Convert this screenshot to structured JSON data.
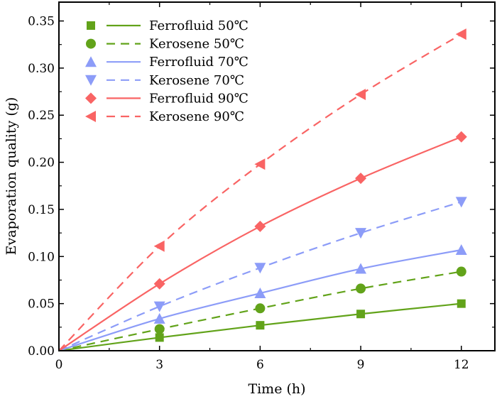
{
  "chart_data": {
    "type": "line",
    "title": "",
    "xlabel": "Time (h)",
    "ylabel": "Evaporation quality (g)",
    "xlim": [
      0,
      13
    ],
    "ylim": [
      0,
      0.37
    ],
    "xticks": [
      0,
      3,
      6,
      9,
      12
    ],
    "xtick_labels": [
      "0",
      "3",
      "6",
      "9",
      "12"
    ],
    "xminor_step": 1.5,
    "yticks": [
      0,
      0.05,
      0.1,
      0.15,
      0.2,
      0.25,
      0.3,
      0.35
    ],
    "ytick_labels": [
      "0.00",
      "0.05",
      "0.10",
      "0.15",
      "0.20",
      "0.25",
      "0.30",
      "0.35"
    ],
    "yminor_step": 0.025,
    "grid": false,
    "legend_position": "top-left",
    "x": [
      0,
      3,
      6,
      9,
      12
    ],
    "series": [
      {
        "name": "Ferrofluid 50℃",
        "color": "#62a31a",
        "dash": "solid",
        "marker": "square",
        "values": [
          0,
          0.014,
          0.027,
          0.039,
          0.05
        ]
      },
      {
        "name": "Kerosene 50℃",
        "color": "#62a31a",
        "dash": "dashed",
        "marker": "circle",
        "values": [
          0,
          0.023,
          0.045,
          0.066,
          0.084
        ]
      },
      {
        "name": "Ferrofluid 70℃",
        "color": "#8c9cf8",
        "dash": "solid",
        "marker": "triangle-up",
        "values": [
          0,
          0.034,
          0.061,
          0.087,
          0.107
        ]
      },
      {
        "name": "Kerosene 70℃",
        "color": "#8c9cf8",
        "dash": "dashed",
        "marker": "triangle-down",
        "values": [
          0,
          0.047,
          0.088,
          0.125,
          0.158
        ]
      },
      {
        "name": "Ferrofluid 90℃",
        "color": "#f96464",
        "dash": "solid",
        "marker": "diamond",
        "values": [
          0,
          0.071,
          0.132,
          0.183,
          0.227
        ]
      },
      {
        "name": "Kerosene 90℃",
        "color": "#f96464",
        "dash": "dashed",
        "marker": "triangle-left",
        "values": [
          0,
          0.111,
          0.198,
          0.272,
          0.336
        ]
      }
    ]
  }
}
